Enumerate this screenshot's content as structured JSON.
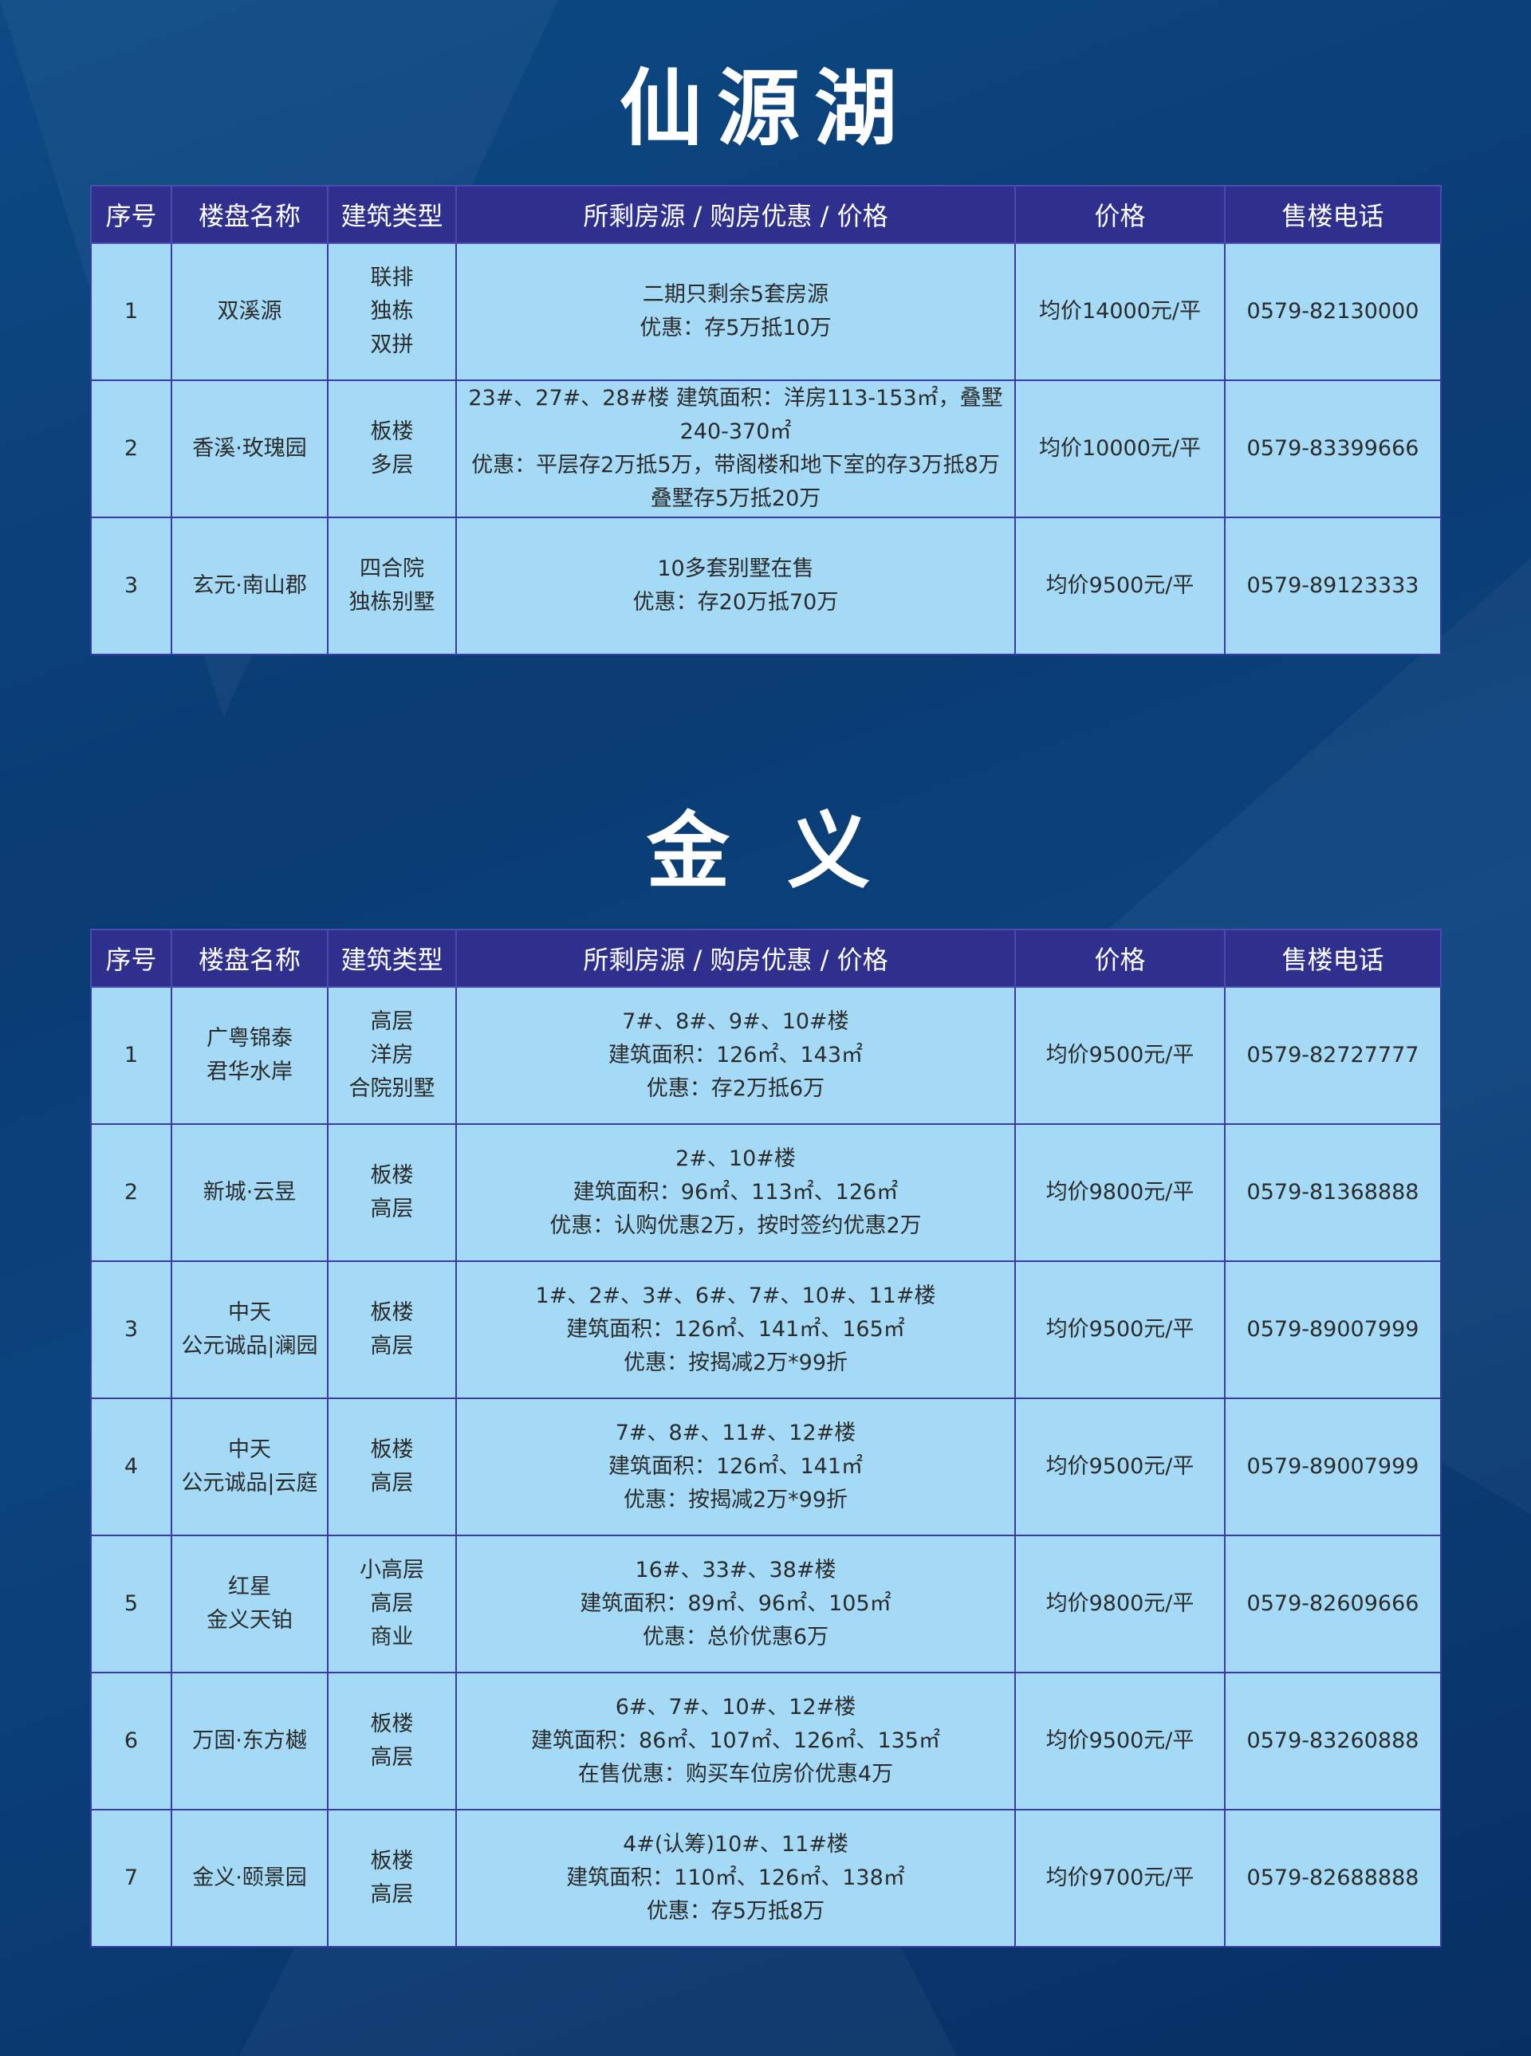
{
  "headers": [
    "序号",
    "楼盘名称",
    "建筑类型",
    "所剩房源 / 购房优惠 / 价格",
    "价格",
    "售楼电话"
  ],
  "sections": [
    {
      "title": "仙源湖",
      "rows": [
        {
          "no": "1",
          "name": [
            "双溪源"
          ],
          "type": [
            "联排",
            "独栋",
            "双拼"
          ],
          "detail": [
            "二期只剩余5套房源",
            "优惠：存5万抵10万"
          ],
          "price": "均价14000元/平",
          "phone": "0579-82130000"
        },
        {
          "no": "2",
          "name": [
            "香溪·玫瑰园"
          ],
          "type": [
            "板楼",
            "多层"
          ],
          "detail": [
            "23#、27#、28#楼  建筑面积：洋房113-153㎡，叠墅240-370㎡",
            "优惠：平层存2万抵5万，带阁楼和地下室的存3万抵8万",
            "叠墅存5万抵20万"
          ],
          "price": "均价10000元/平",
          "phone": "0579-83399666"
        },
        {
          "no": "3",
          "name": [
            "玄元·南山郡"
          ],
          "type": [
            "四合院",
            "独栋别墅"
          ],
          "detail": [
            "10多套别墅在售",
            "优惠：存20万抵70万"
          ],
          "price": "均价9500元/平",
          "phone": "0579-89123333"
        }
      ]
    },
    {
      "title": "金 义",
      "rows": [
        {
          "no": "1",
          "name": [
            "广粤锦泰",
            "君华水岸"
          ],
          "type": [
            "高层",
            "洋房",
            "合院别墅"
          ],
          "detail": [
            "7#、8#、9#、10#楼",
            "建筑面积：126㎡、143㎡",
            "优惠：存2万抵6万"
          ],
          "price": "均价9500元/平",
          "phone": "0579-82727777"
        },
        {
          "no": "2",
          "name": [
            "新城·云昱"
          ],
          "type": [
            "板楼",
            "高层"
          ],
          "detail": [
            "2#、10#楼",
            "建筑面积：96㎡、113㎡、126㎡",
            "优惠：认购优惠2万，按时签约优惠2万"
          ],
          "price": "均价9800元/平",
          "phone": "0579-81368888"
        },
        {
          "no": "3",
          "name": [
            "中天",
            "公元诚品|澜园"
          ],
          "type": [
            "板楼",
            "高层"
          ],
          "detail": [
            "1#、2#、3#、6#、7#、10#、11#楼",
            "建筑面积：126㎡、141㎡、165㎡",
            "优惠：按揭减2万*99折"
          ],
          "price": "均价9500元/平",
          "phone": "0579-89007999"
        },
        {
          "no": "4",
          "name": [
            "中天",
            "公元诚品|云庭"
          ],
          "type": [
            "板楼",
            "高层"
          ],
          "detail": [
            "7#、8#、11#、12#楼",
            "建筑面积：126㎡、141㎡",
            "优惠：按揭减2万*99折"
          ],
          "price": "均价9500元/平",
          "phone": "0579-89007999"
        },
        {
          "no": "5",
          "name": [
            "红星",
            "金义天铂"
          ],
          "type": [
            "小高层",
            "高层",
            "商业"
          ],
          "detail": [
            "16#、33#、38#楼",
            "建筑面积：89㎡、96㎡、105㎡",
            "优惠：总价优惠6万"
          ],
          "price": "均价9800元/平",
          "phone": "0579-82609666"
        },
        {
          "no": "6",
          "name": [
            "万固·东方樾"
          ],
          "type": [
            "板楼",
            "高层"
          ],
          "detail": [
            "6#、7#、10#、12#楼",
            "建筑面积：86㎡、107㎡、126㎡、135㎡",
            "在售优惠：购买车位房价优惠4万"
          ],
          "price": "均价9500元/平",
          "phone": "0579-83260888"
        },
        {
          "no": "7",
          "name": [
            "金义·颐景园"
          ],
          "type": [
            "板楼",
            "高层"
          ],
          "detail": [
            "4#(认筹)10#、11#楼",
            "建筑面积：110㎡、126㎡、138㎡",
            "优惠：存5万抵8万"
          ],
          "price": "均价9700元/平",
          "phone": "0579-82688888"
        }
      ]
    }
  ]
}
